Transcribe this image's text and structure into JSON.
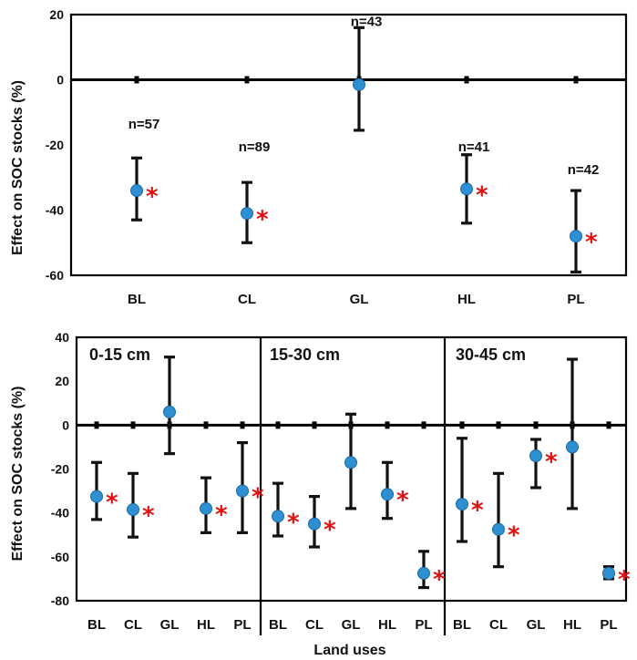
{
  "chart_data": [
    {
      "type": "scatter",
      "subtype": "point-with-error-bars",
      "title": "",
      "ylabel": "Effect on SOC stocks (%)",
      "xlabel": "",
      "ylim": [
        -60,
        20
      ],
      "yticks": [
        20,
        0,
        -20,
        -40,
        -60
      ],
      "categories": [
        "BL",
        "CL",
        "GL",
        "HL",
        "PL"
      ],
      "series": [
        {
          "name": "Effect",
          "values": [
            -34,
            -41,
            -1.5,
            -33.5,
            -48
          ],
          "lower": [
            -43,
            -50,
            -15.5,
            -44,
            -59
          ],
          "upper": [
            -24,
            -31.5,
            16,
            -23,
            -34
          ],
          "n_labels": [
            "n=57",
            "n=89",
            "n=43",
            "n=41",
            "n=42"
          ],
          "n_label_values": [
            -15,
            -22,
            16.5,
            -22,
            -29
          ],
          "significant": [
            true,
            true,
            false,
            true,
            true
          ]
        }
      ]
    },
    {
      "type": "scatter",
      "subtype": "point-with-error-bars",
      "title": "",
      "ylabel": "Effect on SOC stocks (%)",
      "xlabel": "Land uses",
      "ylim": [
        -80,
        40
      ],
      "yticks": [
        40,
        20,
        0,
        -20,
        -40,
        -60,
        -80
      ],
      "categories": [
        "BL",
        "CL",
        "GL",
        "HL",
        "PL"
      ],
      "panels": [
        {
          "label": "0-15 cm",
          "values": [
            -32.5,
            -38.5,
            6,
            -38,
            -30
          ],
          "lower": [
            -43,
            -51,
            -13,
            -49,
            -49
          ],
          "upper": [
            -17,
            -22,
            31,
            -24,
            -8
          ],
          "significant": [
            true,
            true,
            false,
            true,
            true
          ]
        },
        {
          "label": "15-30 cm",
          "values": [
            -41.5,
            -45,
            -17,
            -31.5,
            -67.5
          ],
          "lower": [
            -50.5,
            -55.5,
            -38,
            -42.5,
            -74
          ],
          "upper": [
            -26.5,
            -32.5,
            5,
            -17,
            -57.5
          ],
          "significant": [
            true,
            true,
            false,
            true,
            true
          ]
        },
        {
          "label": "30-45 cm",
          "values": [
            -36,
            -47.5,
            -14,
            -10,
            -67.5
          ],
          "lower": [
            -53,
            -64.5,
            -28.5,
            -38,
            -70
          ],
          "upper": [
            -6,
            -22,
            -6.5,
            30,
            -64.5
          ],
          "significant": [
            true,
            true,
            true,
            false,
            true
          ]
        }
      ]
    }
  ],
  "colors": {
    "point": "#2f8fd3",
    "point_edge": "#1b6aa3",
    "star": "#e01010",
    "axis": "#000000"
  },
  "significance_mark": "*"
}
